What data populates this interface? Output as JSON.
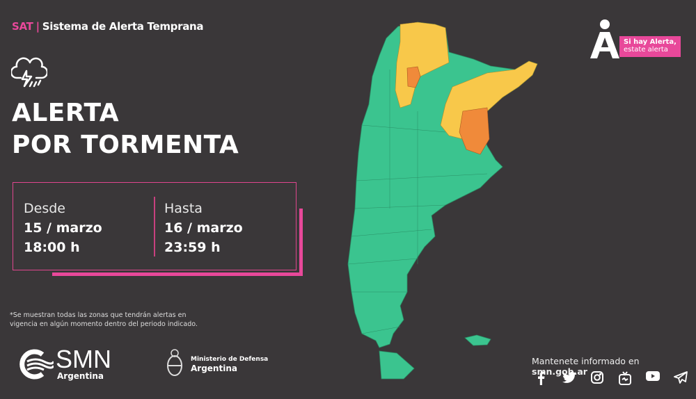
{
  "header": {
    "acronym": "SAT",
    "separator": "|",
    "system_name": "Sistema de Alerta Temprana"
  },
  "alert": {
    "icon": "storm-cloud-icon",
    "line1": "ALERTA",
    "line2": "POR TORMENTA"
  },
  "period": {
    "from": {
      "label": "Desde",
      "date": "15 / marzo",
      "time": "18:00 h"
    },
    "to": {
      "label": "Hasta",
      "date": "16 / marzo",
      "time": "23:59 h"
    }
  },
  "footnote": "*Se muestran todas las zonas que tendrán alertas en vigencia en algún momento dentro del periodo indicado.",
  "logos": {
    "smn": {
      "name": "SMN",
      "sub": "Argentina"
    },
    "ministry": {
      "line1": "Ministerio de Defensa",
      "line2": "Argentina"
    }
  },
  "badge": {
    "line1": "Si hay Alerta,",
    "line2": "estate alerta"
  },
  "follow": {
    "prefix": "Mantenete informado en ",
    "site": "smn.gob.ar"
  },
  "social": [
    "facebook-icon",
    "twitter-icon",
    "instagram-icon",
    "igtv-icon",
    "youtube-icon",
    "telegram-icon"
  ],
  "map": {
    "levels": {
      "none": "#3bc48f",
      "yellow": "#f8c84a",
      "orange": "#f08a3a"
    }
  },
  "colors": {
    "background": "#3a3739",
    "accent": "#e8489a"
  }
}
